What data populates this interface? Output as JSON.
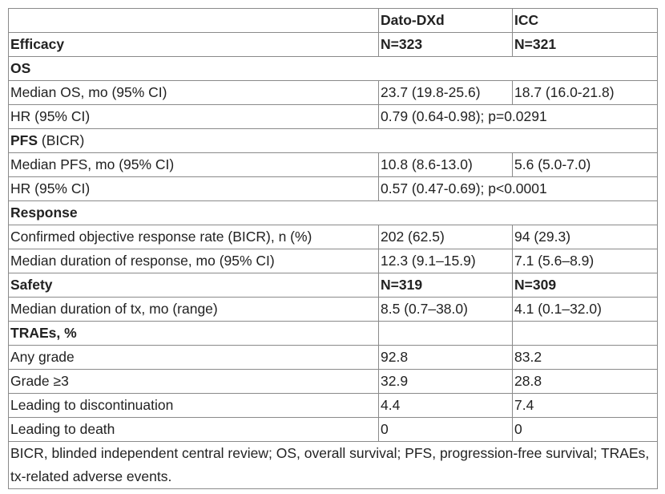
{
  "header": {
    "col1": "",
    "col2": "Dato-DXd",
    "col3": "ICC"
  },
  "rows": {
    "efficacy": {
      "label": "Efficacy",
      "v1": "N=323",
      "v2": "N=321"
    },
    "os_heading": {
      "label": "OS"
    },
    "median_os": {
      "label": "Median OS, mo (95% CI)",
      "v1": "23.7 (19.8-25.6)",
      "v2": "18.7 (16.0-21.8)"
    },
    "os_hr": {
      "label": "HR (95% CI)",
      "v": "0.79 (0.64-0.98); p=0.0291"
    },
    "pfs_heading": {
      "label": "PFS",
      "suffix": " (BICR)"
    },
    "median_pfs": {
      "label": "Median PFS, mo (95% CI)",
      "v1": "10.8 (8.6-13.0)",
      "v2": "5.6 (5.0-7.0)"
    },
    "pfs_hr": {
      "label": "HR (95% CI)",
      "v": "0.57 (0.47-0.69); p<0.0001"
    },
    "response_heading": {
      "label": "Response"
    },
    "orr": {
      "label": "Confirmed objective response rate (BICR), n (%)",
      "v1": "202 (62.5)",
      "v2": "94 (29.3)"
    },
    "dor": {
      "label": "Median duration of response, mo (95% CI)",
      "v1": "12.3 (9.1–15.9)",
      "v2": "7.1 (5.6–8.9)"
    },
    "safety": {
      "label": "Safety",
      "v1": "N=319",
      "v2": "N=309"
    },
    "duration_tx": {
      "label": "Median duration of tx, mo (range)",
      "v1": "8.5 (0.7–38.0)",
      "v2": "4.1 (0.1–32.0)"
    },
    "traes_heading": {
      "label": "TRAEs, %"
    },
    "any_grade": {
      "label": "Any grade",
      "v1": "92.8",
      "v2": "83.2"
    },
    "grade3": {
      "label": "Grade ≥3",
      "v1": "32.9",
      "v2": "28.8"
    },
    "discontinuation": {
      "label": "Leading to discontinuation",
      "v1": "4.4",
      "v2": "7.4"
    },
    "death": {
      "label": "Leading to death",
      "v1": "0",
      "v2": "0"
    }
  },
  "footnote": "BICR, blinded independent central review; OS, overall survival; PFS, progression-free survival; TRAEs, tx-related adverse events."
}
